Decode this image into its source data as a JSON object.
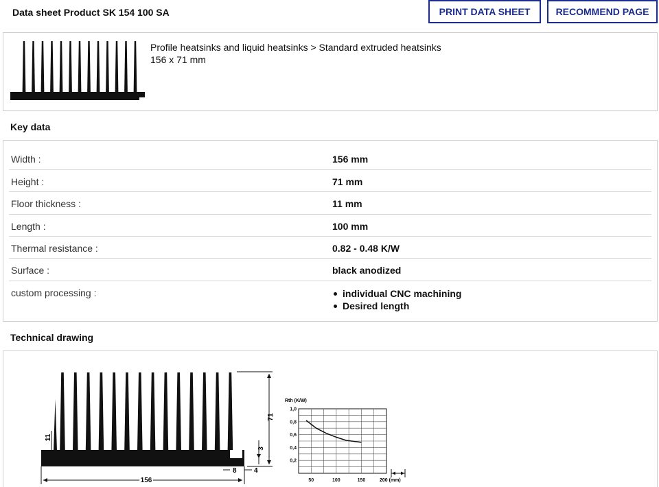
{
  "header": {
    "title": "Data sheet Product SK 154 100 SA",
    "print_label": "PRINT DATA SHEET",
    "recommend_label": "RECOMMEND PAGE",
    "brand_color": "#1c2d8f"
  },
  "product": {
    "breadcrumb": "Profile heatsinks and liquid heatsinks > Standard extruded heatsinks",
    "dimensions": "156 x 71 mm",
    "thumbnail_icon": "heatsink-profile-icon"
  },
  "key_data": {
    "title": "Key data",
    "rows": [
      {
        "label": "Width :",
        "value": "156 mm"
      },
      {
        "label": "Height :",
        "value": "71 mm"
      },
      {
        "label": "Floor thickness :",
        "value": "11 mm"
      },
      {
        "label": "Length :",
        "value": "100 mm"
      },
      {
        "label": "Thermal resistance :",
        "value": "0.82 - 0.48 K/W"
      },
      {
        "label": "Surface :",
        "value": "black anodized"
      }
    ],
    "custom": {
      "label": "custom processing :",
      "items": [
        "individual CNC machining",
        "Desired length"
      ]
    }
  },
  "technical_drawing": {
    "title": "Technical drawing",
    "dimensions": {
      "width": "156",
      "height": "71",
      "floor": "11",
      "edge_height": "3",
      "step": "8",
      "offset": "4"
    },
    "chart": {
      "ylabel": "Rth (K/W)",
      "xlabel_unit": "200 (mm)",
      "y_ticks": [
        "1,0",
        "0,8",
        "0,6",
        "0,4",
        "0,2"
      ],
      "x_ticks": [
        "50",
        "100",
        "150"
      ]
    }
  },
  "chart_data": {
    "type": "line",
    "title": "",
    "xlabel": "(mm)",
    "ylabel": "Rth (K/W)",
    "xlim": [
      25,
      200
    ],
    "ylim": [
      0,
      1.0
    ],
    "x_ticks": [
      50,
      100,
      150,
      200
    ],
    "y_ticks": [
      0.2,
      0.4,
      0.6,
      0.8,
      1.0
    ],
    "grid": true,
    "series": [
      {
        "x": [
          40,
          60,
          80,
          100,
          120,
          150
        ],
        "y": [
          0.82,
          0.7,
          0.62,
          0.56,
          0.51,
          0.48
        ]
      }
    ]
  }
}
